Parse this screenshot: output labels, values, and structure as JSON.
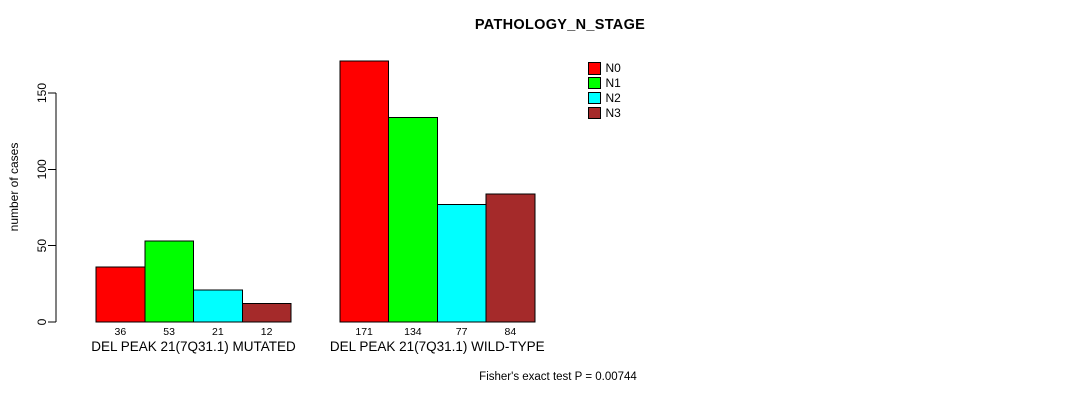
{
  "chart_data": {
    "type": "bar",
    "title": "PATHOLOGY_N_STAGE",
    "ylabel": "number of cases",
    "xlabel": "",
    "ylim": [
      0,
      175
    ],
    "yticks": [
      0,
      50,
      100,
      150
    ],
    "grid": false,
    "legend_position": "top-right",
    "value_labels_shown": true,
    "categories": [
      "DEL PEAK 21(7Q31.1) MUTATED",
      "DEL PEAK 21(7Q31.1) WILD-TYPE"
    ],
    "series": [
      {
        "name": "N0",
        "color": "#FF0000",
        "values": [
          36,
          171
        ]
      },
      {
        "name": "N1",
        "color": "#00FF00",
        "values": [
          53,
          134
        ]
      },
      {
        "name": "N2",
        "color": "#00FFFF",
        "values": [
          21,
          77
        ]
      },
      {
        "name": "N3",
        "color": "#A52A2A",
        "values": [
          12,
          84
        ]
      }
    ],
    "annotation": "Fisher's exact test P = 0.00744",
    "axis_color": "#000000",
    "bar_border_color": "#000000",
    "background_color": "#FFFFFF"
  }
}
